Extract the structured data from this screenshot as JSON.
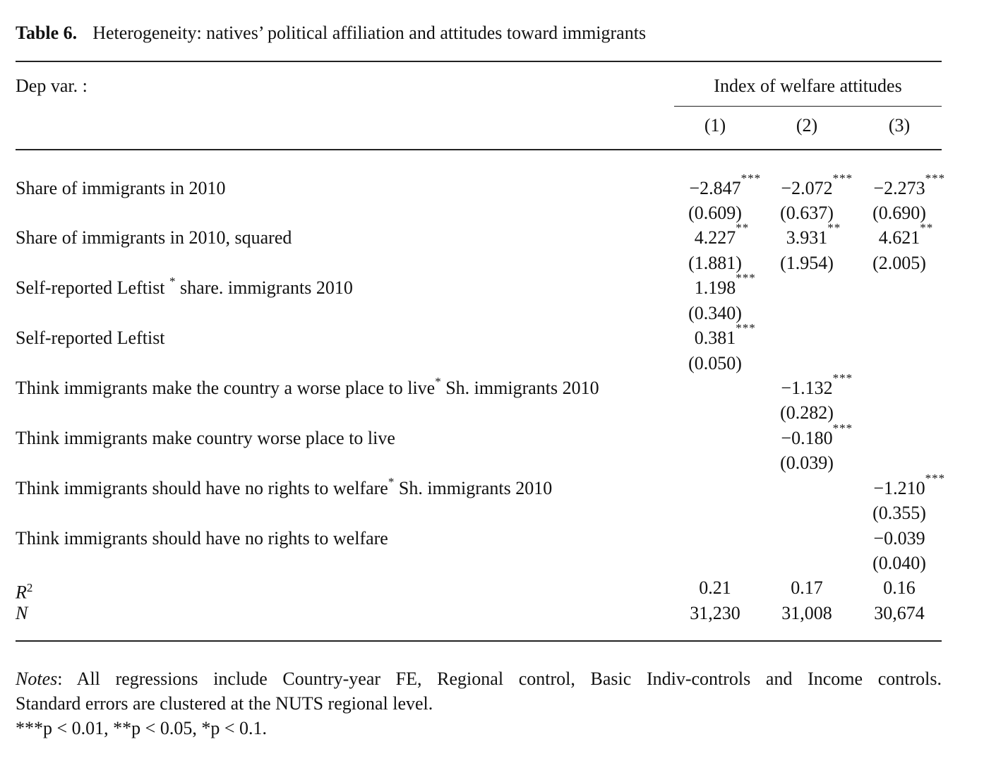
{
  "caption": {
    "label": "Table 6.",
    "title": "Heterogeneity: natives’ political affiliation and attitudes toward immigrants"
  },
  "header": {
    "dep_var_label": "Dep var. :",
    "group_label": "Index of welfare attitudes",
    "columns": [
      "(1)",
      "(2)",
      "(3)"
    ]
  },
  "rows": {
    "share_2010": {
      "label": "Share of immigrants in 2010",
      "coef": [
        "−2.847",
        "−2.072",
        "−2.273"
      ],
      "sig": [
        "***",
        "***",
        "***"
      ],
      "se": [
        "(0.609)",
        "(0.637)",
        "(0.690)"
      ]
    },
    "share_2010_sq": {
      "label": "Share of immigrants in 2010, squared",
      "coef": [
        "4.227",
        "3.931",
        "4.621"
      ],
      "sig": [
        "**",
        "**",
        "**"
      ],
      "se": [
        "(1.881)",
        "(1.954)",
        "(2.005)"
      ]
    },
    "leftist_interact": {
      "label_pre": "Self-reported Leftist ",
      "label_star": "*",
      "label_post": " share. immigrants 2010",
      "coef": "1.198",
      "sig": "***",
      "se": "(0.340)"
    },
    "leftist": {
      "label": "Self-reported Leftist",
      "coef": "0.381",
      "sig": "***",
      "se": "(0.050)"
    },
    "worse_interact": {
      "label_pre": "Think immigrants make the country a worse place to live",
      "label_star": "*",
      "label_post": " Sh. immigrants 2010",
      "coef": "−1.132",
      "sig": "***",
      "se": "(0.282)"
    },
    "worse": {
      "label": "Think immigrants make country worse place to live",
      "coef": "−0.180",
      "sig": "***",
      "se": "(0.039)"
    },
    "norights_interact": {
      "label_pre": "Think immigrants should have no rights to welfare",
      "label_star": "*",
      "label_post": " Sh. immigrants 2010",
      "coef": "−1.210",
      "sig": "***",
      "se": "(0.355)"
    },
    "norights": {
      "label": "Think immigrants should have no rights to welfare",
      "coef": "−0.039",
      "se": "(0.040)"
    },
    "r2": {
      "label": "R",
      "label_sup": "2",
      "values": [
        "0.21",
        "0.17",
        "0.16"
      ]
    },
    "n": {
      "label": "N",
      "values": [
        "31,230",
        "31,008",
        "30,674"
      ]
    }
  },
  "notes": {
    "prefix": "Notes",
    "line1": ": All regressions include Country-year FE, Regional control, Basic Indiv-controls and Income controls.",
    "line2": "Standard errors are clustered at the NUTS regional level.",
    "line3": "***p < 0.01, **p < 0.05, *p < 0.1."
  }
}
